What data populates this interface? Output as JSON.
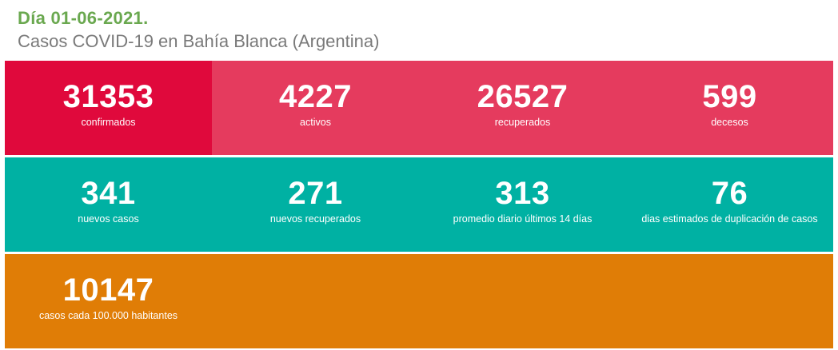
{
  "header": {
    "date_title": "Día 01-06-2021.",
    "subtitle": "Casos COVID-19 en Bahía Blanca (Argentina)"
  },
  "row1": [
    {
      "value": "31353",
      "label": "confirmados"
    },
    {
      "value": "4227",
      "label": "activos"
    },
    {
      "value": "26527",
      "label": "recuperados"
    },
    {
      "value": "599",
      "label": "decesos"
    }
  ],
  "row2": [
    {
      "value": "341",
      "label": "nuevos casos"
    },
    {
      "value": "271",
      "label": "nuevos recuperados"
    },
    {
      "value": "313",
      "label": "promedio diario últimos 14 días"
    },
    {
      "value": "76",
      "label": "dias estimados de duplicación de casos"
    }
  ],
  "row3": [
    {
      "value": "10147",
      "label": "casos cada 100.000 habitantes"
    }
  ],
  "colors": {
    "title_green": "#6aa84f",
    "row1_bg": "#e53b5e",
    "confirmados_bg": "#e0093c",
    "row2_bg": "#00b1a3",
    "row3_bg": "#e07d06"
  }
}
